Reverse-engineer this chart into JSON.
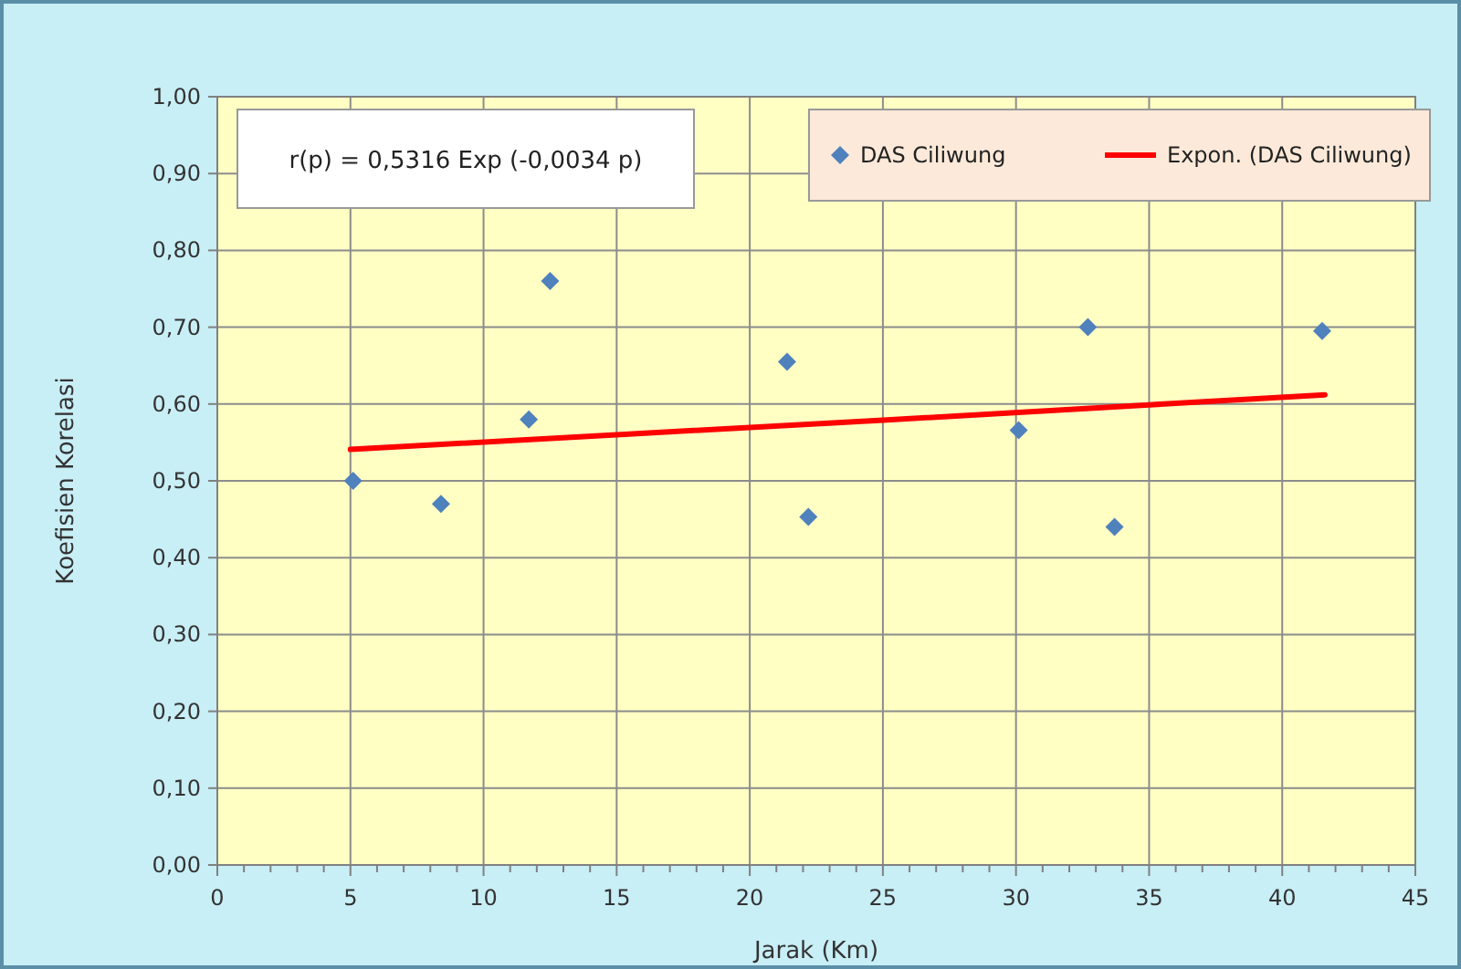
{
  "chart_data": {
    "type": "scatter",
    "xlabel": "Jarak (Km)",
    "ylabel": "Koefisien Korelasi",
    "annotations": [
      "r(p) = 0,5316 Exp (-0,0034 p)"
    ],
    "xlim": [
      0,
      45
    ],
    "xticks": [
      0,
      5,
      10,
      15,
      20,
      25,
      30,
      35,
      40,
      45
    ],
    "ylim": [
      0,
      1
    ],
    "yticks": [
      {
        "value": 0,
        "label": "0,00"
      },
      {
        "value": 0.1,
        "label": "0,10"
      },
      {
        "value": 0.2,
        "label": "0,20"
      },
      {
        "value": 0.3,
        "label": "0,30"
      },
      {
        "value": 0.4,
        "label": "0,40"
      },
      {
        "value": 0.5,
        "label": "0,50"
      },
      {
        "value": 0.6,
        "label": "0,60"
      },
      {
        "value": 0.7,
        "label": "0,70"
      },
      {
        "value": 0.8,
        "label": "0,80"
      },
      {
        "value": 0.9,
        "label": "0,90"
      },
      {
        "value": 1,
        "label": "1,00"
      }
    ],
    "grid": true,
    "legend": "top right",
    "marker": "diamond",
    "series": [
      {
        "name": "DAS Ciliwung",
        "color": "#4f81bd",
        "x": [
          5.1,
          8.4,
          11.7,
          12.5,
          21.4,
          22.2,
          30.1,
          32.7,
          33.7,
          41.5
        ],
        "values": [
          0.5,
          0.47,
          0.58,
          0.76,
          0.655,
          0.453,
          0.566,
          0.7,
          0.44,
          0.695
        ]
      },
      {
        "name": "Expon. (DAS Ciliwung)",
        "type": "line",
        "marker": "none",
        "color": "#ff0000",
        "x": [
          5,
          15,
          25,
          35,
          41.6
        ],
        "values": [
          0.541,
          0.56,
          0.579,
          0.599,
          0.612
        ]
      }
    ]
  }
}
